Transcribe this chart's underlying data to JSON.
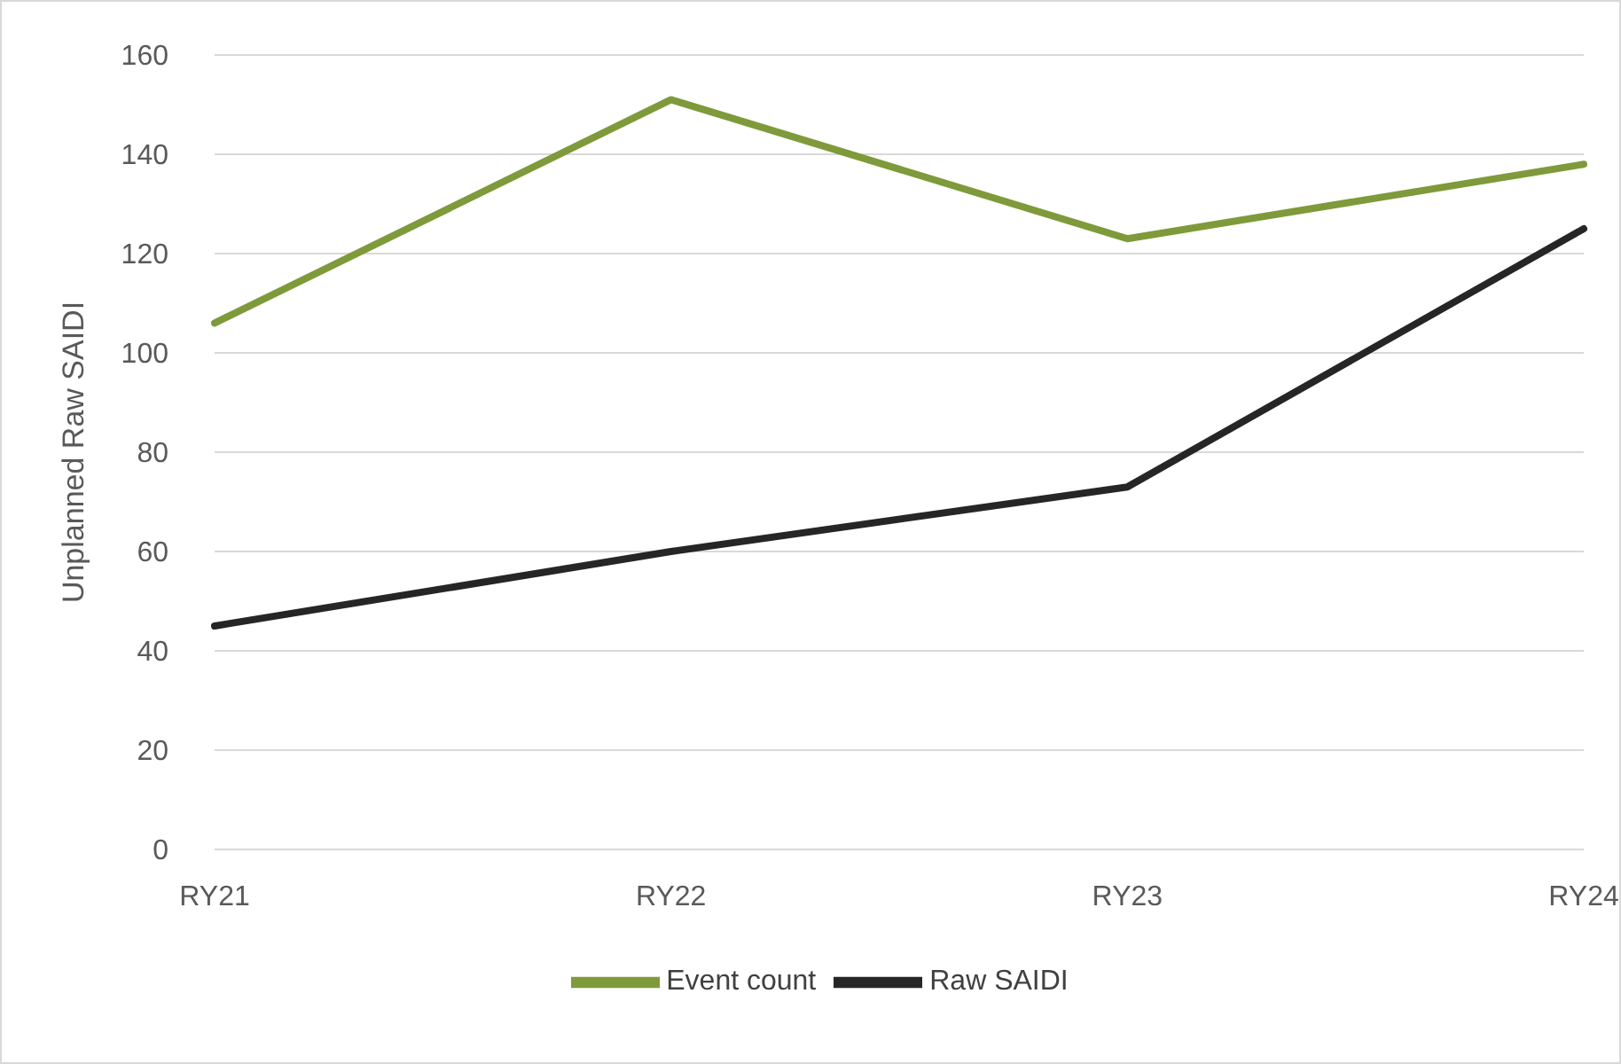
{
  "chart_data": {
    "type": "line",
    "ylabel": "Unplanned Raw SAIDI",
    "categories": [
      "RY21",
      "RY22",
      "RY23",
      "RY24"
    ],
    "series": [
      {
        "name": "Event count",
        "color": "#7f9a3a",
        "values": [
          106,
          151,
          123,
          138
        ]
      },
      {
        "name": "Raw SAIDI",
        "color": "#262626",
        "values": [
          45,
          60,
          73,
          125
        ]
      }
    ],
    "ylim": [
      0,
      160
    ],
    "yticks": [
      0,
      20,
      40,
      60,
      80,
      100,
      120,
      140,
      160
    ],
    "grid": "y",
    "legend": "bottom",
    "marker": "none",
    "line_style": "solid"
  }
}
